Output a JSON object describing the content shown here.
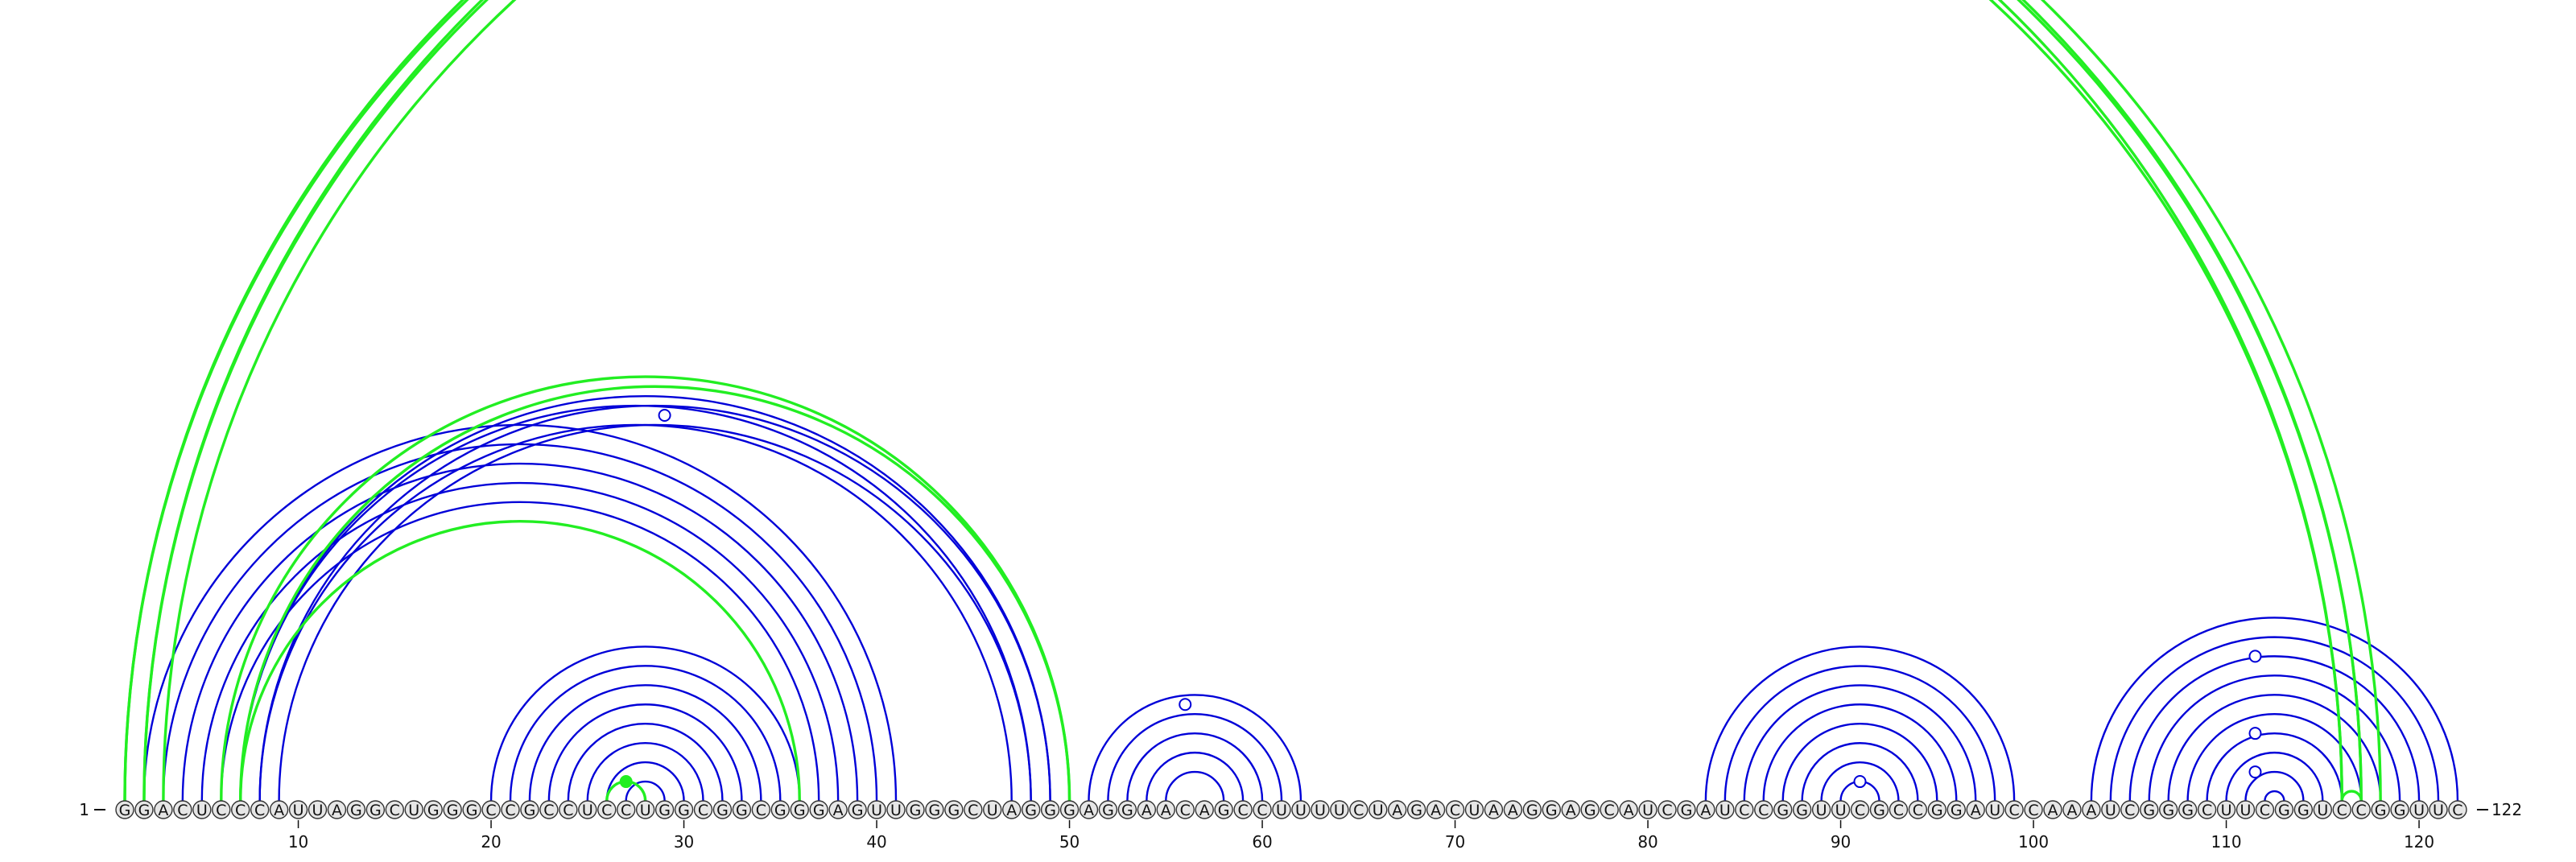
{
  "diagram": {
    "sequence": "GGACUCCCAUUAGGCUGGGCCGCCUCCUGGCGGCGGGAGUUGGGCUAGGGAGGAACAGCCUUUUCUAGACUAAGGAGCAUCGAUCCGGUUCGCCGGAUCCAAAUCGGGCUUCGGUCCGGUUC",
    "start_label": "1",
    "end_label": "122",
    "tick_labels": [
      "10",
      "20",
      "30",
      "40",
      "50",
      "60",
      "70",
      "80",
      "90",
      "100",
      "110",
      "120"
    ],
    "colors": {
      "blue_arc": "#0000d8",
      "green_arc": "#22ee22",
      "base_fill": "#e6e6e6",
      "base_stroke": "#333333",
      "text": "#111111",
      "background": "#ffffff"
    },
    "blue_pairs": [
      [
        2,
        41
      ],
      [
        3,
        40
      ],
      [
        4,
        39
      ],
      [
        5,
        38
      ],
      [
        6,
        37
      ],
      [
        7,
        48
      ],
      [
        8,
        47
      ],
      [
        7,
        49
      ],
      [
        8,
        49
      ],
      [
        9,
        48
      ],
      [
        20,
        36
      ],
      [
        21,
        35
      ],
      [
        22,
        34
      ],
      [
        23,
        33
      ],
      [
        24,
        32
      ],
      [
        25,
        31
      ],
      [
        26,
        30
      ],
      [
        27,
        29
      ],
      [
        51,
        62
      ],
      [
        52,
        61
      ],
      [
        53,
        60
      ],
      [
        54,
        59
      ],
      [
        55,
        58
      ],
      [
        83,
        99
      ],
      [
        84,
        98
      ],
      [
        85,
        97
      ],
      [
        86,
        96
      ],
      [
        87,
        95
      ],
      [
        88,
        94
      ],
      [
        89,
        93
      ],
      [
        90,
        92
      ],
      [
        103,
        122
      ],
      [
        104,
        121
      ],
      [
        105,
        120
      ],
      [
        106,
        119
      ],
      [
        107,
        118
      ],
      [
        108,
        117
      ],
      [
        109,
        116
      ],
      [
        110,
        115
      ],
      [
        111,
        114
      ],
      [
        112,
        113
      ]
    ],
    "green_pairs": [
      [
        1,
        116
      ],
      [
        1,
        117
      ],
      [
        2,
        117
      ],
      [
        2,
        118
      ],
      [
        3,
        116
      ],
      [
        6,
        50
      ],
      [
        7,
        50
      ],
      [
        7,
        36
      ],
      [
        26,
        28
      ],
      [
        116,
        117
      ]
    ],
    "markers": [
      {
        "pair": [
          9,
          49
        ],
        "kind": "open"
      },
      {
        "pair": [
          26,
          28
        ],
        "kind": "filled"
      },
      {
        "pair": [
          51,
          61
        ],
        "kind": "open"
      },
      {
        "pair": [
          90,
          92
        ],
        "kind": "open"
      },
      {
        "pair": [
          110,
          113
        ],
        "kind": "open"
      },
      {
        "pair": [
          108,
          115
        ],
        "kind": "open"
      },
      {
        "pair": [
          104,
          119
        ],
        "kind": "open"
      }
    ]
  }
}
